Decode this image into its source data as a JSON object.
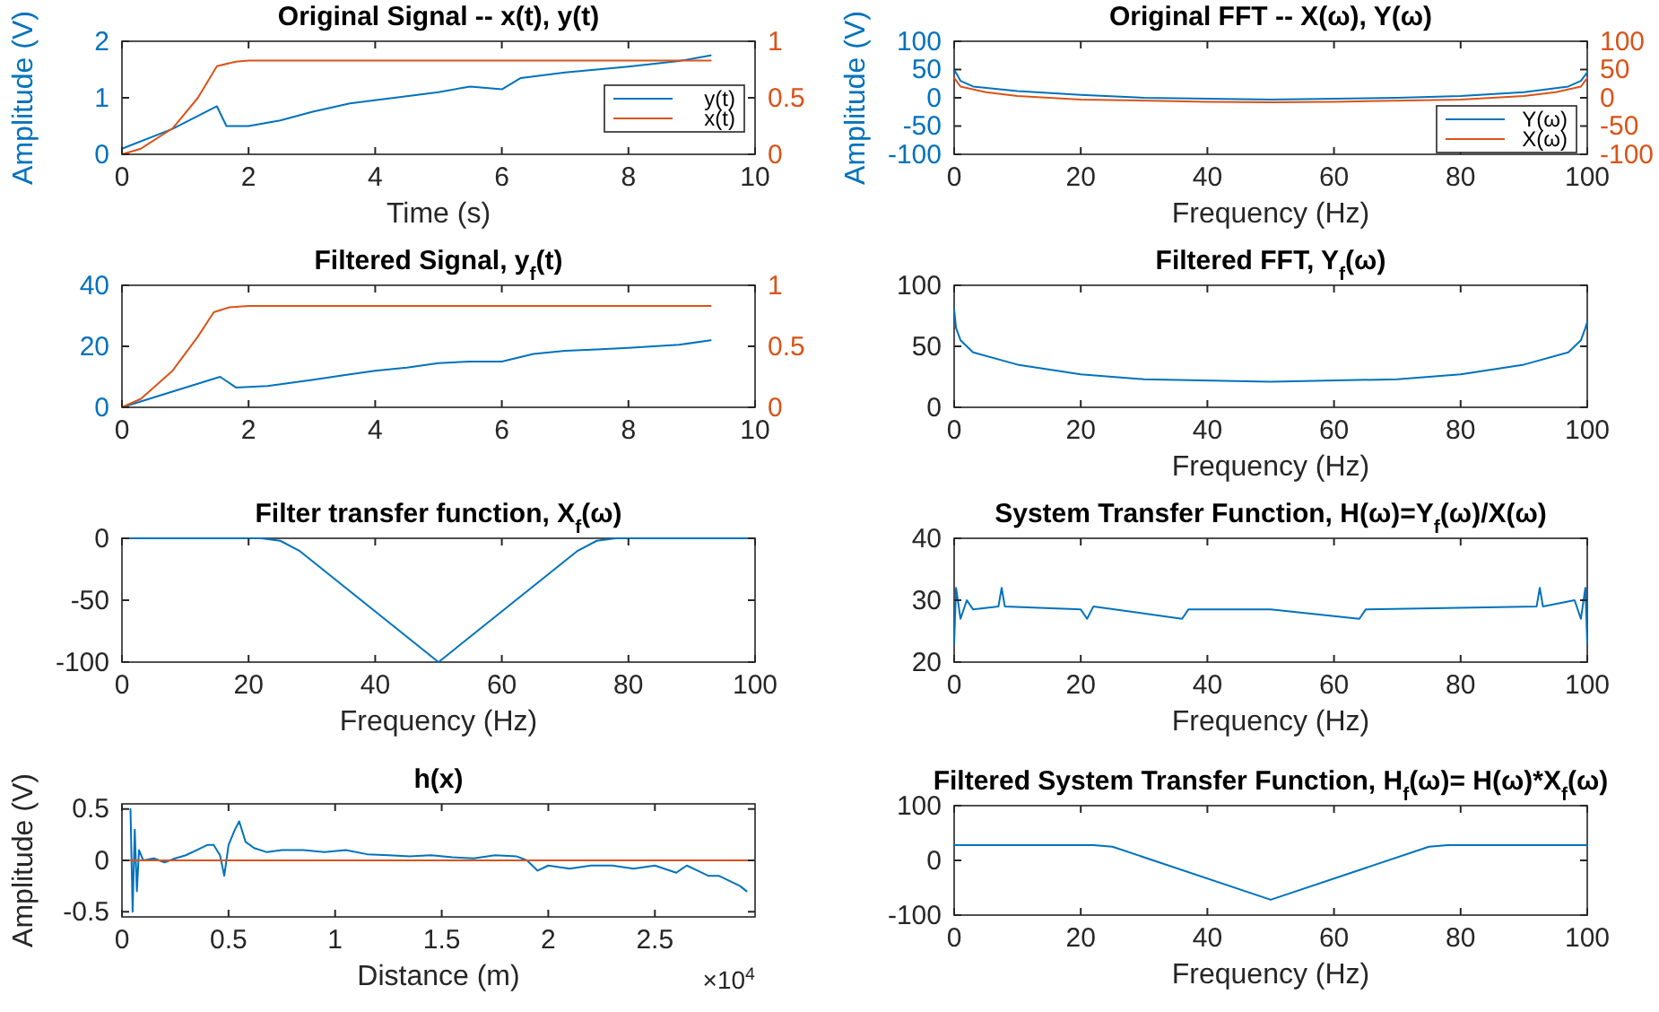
{
  "chart_data": [
    {
      "type": "line",
      "title": "Original Signal -- x(t), y(t)",
      "xlabel": "Time (s)",
      "ylabel": "Amplitude (V)",
      "xlim": [
        0,
        10
      ],
      "xticks": [
        0,
        2,
        4,
        6,
        8,
        10
      ],
      "ylim": [
        0,
        2
      ],
      "yticks": [
        0,
        1,
        2
      ],
      "y2lim": [
        0,
        1
      ],
      "y2ticks": [
        0,
        0.5,
        1
      ],
      "legend": "right",
      "series": [
        {
          "name": "y(t)",
          "color": "#0072bd",
          "x": [
            0,
            0.8,
            1.5,
            1.65,
            2,
            2.5,
            3,
            3.6,
            4.3,
            5,
            5.5,
            6,
            6.3,
            7,
            8,
            8.8,
            9.3
          ],
          "values": [
            0.1,
            0.45,
            0.85,
            0.5,
            0.5,
            0.6,
            0.75,
            0.9,
            1.0,
            1.1,
            1.2,
            1.15,
            1.35,
            1.45,
            1.55,
            1.65,
            1.75
          ]
        },
        {
          "name": "x(t)",
          "color": "#d95319",
          "axis": "y2",
          "x": [
            0,
            0.3,
            0.8,
            1.2,
            1.5,
            1.8,
            2,
            9.3
          ],
          "values": [
            0,
            0.05,
            0.23,
            0.5,
            0.78,
            0.82,
            0.83,
            0.83
          ]
        }
      ]
    },
    {
      "type": "line",
      "title": "Original FFT -- X(ω), Y(ω)",
      "xlabel": "Frequency (Hz)",
      "ylabel": "Amplitude (V)",
      "xlim": [
        0,
        100
      ],
      "xticks": [
        0,
        20,
        40,
        60,
        80,
        100
      ],
      "ylim": [
        -100,
        100
      ],
      "yticks": [
        -100,
        -50,
        0,
        50,
        100
      ],
      "y2lim": [
        -100,
        100
      ],
      "y2ticks": [
        -100,
        -50,
        0,
        50,
        100
      ],
      "legend": "bottom right",
      "series": [
        {
          "name": "Y(ω)",
          "color": "#0072bd",
          "x": [
            0,
            1,
            3,
            10,
            20,
            30,
            50,
            70,
            80,
            90,
            97,
            99,
            100
          ],
          "values": [
            50,
            30,
            20,
            12,
            5,
            0,
            -3,
            0,
            3,
            10,
            20,
            30,
            45
          ]
        },
        {
          "name": "X(ω)",
          "color": "#d95319",
          "axis": "y2",
          "x": [
            0,
            1,
            5,
            10,
            20,
            40,
            50,
            60,
            80,
            90,
            95,
            99,
            100
          ],
          "values": [
            35,
            20,
            10,
            3,
            -3,
            -7,
            -8,
            -7,
            -3,
            3,
            10,
            20,
            35
          ]
        }
      ]
    },
    {
      "type": "line",
      "title": "Filtered Signal, y$_{f}$(t)",
      "xlim": [
        0,
        10
      ],
      "xticks": [
        0,
        2,
        4,
        6,
        8,
        10
      ],
      "ylim": [
        0,
        40
      ],
      "yticks": [
        0,
        20,
        40
      ],
      "y2lim": [
        0,
        1
      ],
      "y2ticks": [
        0,
        0.5,
        1
      ],
      "series": [
        {
          "color": "#0072bd",
          "x": [
            0,
            1.55,
            1.8,
            2.3,
            3,
            3.5,
            4,
            4.5,
            5,
            5.5,
            6,
            6.5,
            7,
            7.5,
            8,
            8.8,
            9.3
          ],
          "values": [
            0,
            10,
            6.5,
            7,
            9,
            10.5,
            12,
            13,
            14.5,
            15,
            15,
            17.5,
            18.5,
            19,
            19.5,
            20.5,
            22
          ]
        },
        {
          "color": "#d95319",
          "axis": "y2",
          "x": [
            0,
            0.3,
            0.8,
            1.2,
            1.45,
            1.7,
            2,
            9.3
          ],
          "values": [
            0,
            0.07,
            0.3,
            0.58,
            0.78,
            0.82,
            0.83,
            0.83
          ]
        }
      ]
    },
    {
      "type": "line",
      "title": "Filtered FFT, Y$_{f}$(ω)",
      "xlabel": "Frequency (Hz)",
      "xlim": [
        0,
        100
      ],
      "xticks": [
        0,
        20,
        40,
        60,
        80,
        100
      ],
      "ylim": [
        0,
        100
      ],
      "yticks": [
        0,
        50,
        100
      ],
      "series": [
        {
          "color": "#0072bd",
          "x": [
            0,
            0.3,
            1,
            3,
            10,
            20,
            30,
            50,
            70,
            80,
            90,
            97,
            99,
            99.7,
            100
          ],
          "values": [
            80,
            65,
            55,
            45,
            35,
            27,
            23,
            21,
            23,
            27,
            35,
            45,
            55,
            65,
            70
          ]
        }
      ]
    },
    {
      "type": "line",
      "title": "Filter transfer function, X$_{f}$(ω)",
      "xlabel": "Frequency (Hz)",
      "xlim": [
        0,
        100
      ],
      "xticks": [
        0,
        20,
        40,
        60,
        80,
        100
      ],
      "ylim": [
        -100,
        0
      ],
      "yticks": [
        -100,
        -50,
        0
      ],
      "series": [
        {
          "color": "#0072bd",
          "x": [
            0,
            22,
            25,
            28,
            50,
            72,
            75,
            78,
            100
          ],
          "values": [
            0,
            0,
            -2,
            -10,
            -100,
            -10,
            -2,
            0,
            0
          ]
        }
      ]
    },
    {
      "type": "line",
      "title": "System Transfer Function, H(ω)=Y$_{f}$(ω)/X(ω)",
      "xlabel": "Frequency (Hz)",
      "xlim": [
        0,
        100
      ],
      "xticks": [
        0,
        20,
        40,
        60,
        80,
        100
      ],
      "ylim": [
        20,
        40
      ],
      "yticks": [
        20,
        30,
        40
      ],
      "series": [
        {
          "color": "#0072bd",
          "x": [
            0,
            0.3,
            1,
            2,
            3,
            7,
            7.5,
            8,
            20,
            21,
            22,
            36,
            37,
            50,
            64,
            65,
            92,
            92.5,
            93,
            98,
            99,
            99.7,
            100
          ],
          "values": [
            23,
            32,
            27,
            30,
            28.5,
            29,
            32,
            29,
            28.5,
            27,
            29,
            27,
            28.5,
            28.5,
            27,
            28.5,
            29,
            32,
            29,
            30,
            27,
            32,
            23
          ]
        }
      ]
    },
    {
      "type": "line",
      "title": "h(x)",
      "xlabel": "Distance (m)",
      "ylabel": "Amplitude (V)",
      "xlim": [
        0,
        2.97
      ],
      "xticks": [
        0,
        0.5,
        1,
        1.5,
        2,
        2.5
      ],
      "ylim": [
        -0.55,
        0.55
      ],
      "yticks": [
        -0.5,
        0,
        0.5
      ],
      "annotations": [
        "×10$^{4}$"
      ],
      "series": [
        {
          "color": "#0072bd",
          "x": [
            0.04,
            0.05,
            0.06,
            0.07,
            0.08,
            0.1,
            0.15,
            0.2,
            0.25,
            0.3,
            0.35,
            0.4,
            0.43,
            0.46,
            0.48,
            0.5,
            0.53,
            0.55,
            0.58,
            0.62,
            0.68,
            0.75,
            0.85,
            0.95,
            1.05,
            1.15,
            1.25,
            1.35,
            1.45,
            1.55,
            1.65,
            1.75,
            1.85,
            1.9,
            1.95,
            2.0,
            2.1,
            2.2,
            2.3,
            2.4,
            2.5,
            2.6,
            2.65,
            2.7,
            2.75,
            2.8,
            2.85,
            2.9,
            2.93
          ],
          "values": [
            0.5,
            -0.5,
            0.3,
            -0.3,
            0.1,
            0,
            0.02,
            -0.02,
            0.02,
            0.05,
            0.1,
            0.15,
            0.15,
            0.05,
            -0.15,
            0.15,
            0.3,
            0.38,
            0.18,
            0.12,
            0.08,
            0.1,
            0.1,
            0.08,
            0.1,
            0.06,
            0.05,
            0.04,
            0.05,
            0.03,
            0.02,
            0.05,
            0.04,
            0,
            -0.1,
            -0.05,
            -0.08,
            -0.05,
            -0.05,
            -0.08,
            -0.05,
            -0.12,
            -0.05,
            -0.1,
            -0.15,
            -0.15,
            -0.2,
            -0.25,
            -0.3
          ]
        },
        {
          "color": "#d95319",
          "x": [
            0,
            2.97
          ],
          "values": [
            0,
            0
          ]
        }
      ]
    },
    {
      "type": "line",
      "title": "Filtered System Transfer Function, H$_{f}$(ω)= H(ω)*X$_{f}$(ω)",
      "xlabel": "Frequency (Hz)",
      "xlim": [
        0,
        100
      ],
      "xticks": [
        0,
        20,
        40,
        60,
        80,
        100
      ],
      "ylim": [
        -100,
        100
      ],
      "yticks": [
        -100,
        0,
        100
      ],
      "series": [
        {
          "color": "#0072bd",
          "x": [
            0,
            22,
            25,
            50,
            75,
            78,
            100
          ],
          "values": [
            28,
            28,
            25,
            -72,
            25,
            28,
            28
          ]
        }
      ]
    }
  ]
}
